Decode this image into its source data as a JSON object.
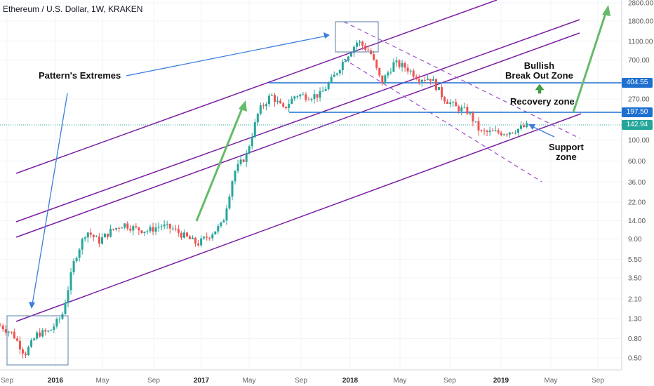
{
  "chart_data": {
    "type": "candlestick",
    "title": "Ethereum / U.S. Dollar, 1W, KRAKEN",
    "scale": "log",
    "y_ticks": [
      "2800.00",
      "1800.00",
      "1100.00",
      "700.00",
      "270.00",
      "100.00",
      "60.00",
      "36.00",
      "22.00",
      "14.00",
      "9.00",
      "5.50",
      "3.50",
      "2.10",
      "1.30",
      "0.80",
      "0.50"
    ],
    "x_ticks": [
      "Sep",
      "2016",
      "May",
      "Sep",
      "2017",
      "May",
      "Sep",
      "2018",
      "May",
      "Sep",
      "2019",
      "May",
      "Sep"
    ],
    "price_labels": [
      {
        "value": "404.55",
        "color": "#1e6fd0"
      },
      {
        "value": "197.50",
        "color": "#1e6fd0"
      },
      {
        "value": "142.94",
        "color": "#26a69a"
      }
    ],
    "annotations": [
      {
        "id": "patterns",
        "text": "Pattern's Extremes"
      },
      {
        "id": "bullish",
        "text": "Bullish\nBreak Out Zone"
      },
      {
        "id": "recovery",
        "text": "Recovery zone"
      },
      {
        "id": "support",
        "text": "Support\nzone"
      }
    ],
    "series": [
      {
        "name": "ETHUSD close (weekly, approx.)",
        "points": [
          [
            "2015-08-15",
            1.1
          ],
          [
            "2015-09-15",
            0.9
          ],
          [
            "2015-10-15",
            0.55
          ],
          [
            "2015-11-15",
            0.9
          ],
          [
            "2015-12-15",
            0.95
          ],
          [
            "2016-01-15",
            1.4
          ],
          [
            "2016-02-15",
            5.5
          ],
          [
            "2016-03-15",
            11
          ],
          [
            "2016-04-15",
            8.5
          ],
          [
            "2016-05-15",
            11
          ],
          [
            "2016-06-15",
            13
          ],
          [
            "2016-07-15",
            11.5
          ],
          [
            "2016-08-15",
            11
          ],
          [
            "2016-09-15",
            12.5
          ],
          [
            "2016-10-15",
            11.5
          ],
          [
            "2016-11-15",
            9.5
          ],
          [
            "2016-12-15",
            8
          ],
          [
            "2017-01-15",
            10
          ],
          [
            "2017-02-15",
            13
          ],
          [
            "2017-03-15",
            45
          ],
          [
            "2017-04-15",
            70
          ],
          [
            "2017-05-15",
            200
          ],
          [
            "2017-06-15",
            300
          ],
          [
            "2017-07-15",
            210
          ],
          [
            "2017-08-15",
            300
          ],
          [
            "2017-09-15",
            290
          ],
          [
            "2017-10-15",
            300
          ],
          [
            "2017-11-15",
            450
          ],
          [
            "2017-12-15",
            730
          ],
          [
            "2018-01-15",
            1100
          ],
          [
            "2018-02-15",
            850
          ],
          [
            "2018-03-15",
            400
          ],
          [
            "2018-04-15",
            650
          ],
          [
            "2018-05-15",
            580
          ],
          [
            "2018-06-15",
            450
          ],
          [
            "2018-07-15",
            450
          ],
          [
            "2018-08-15",
            280
          ],
          [
            "2018-09-15",
            220
          ],
          [
            "2018-10-15",
            200
          ],
          [
            "2018-11-15",
            120
          ],
          [
            "2019-01-15",
            120
          ],
          [
            "2019-02-15",
            130
          ],
          [
            "2019-03-15",
            142.94
          ]
        ]
      }
    ]
  }
}
